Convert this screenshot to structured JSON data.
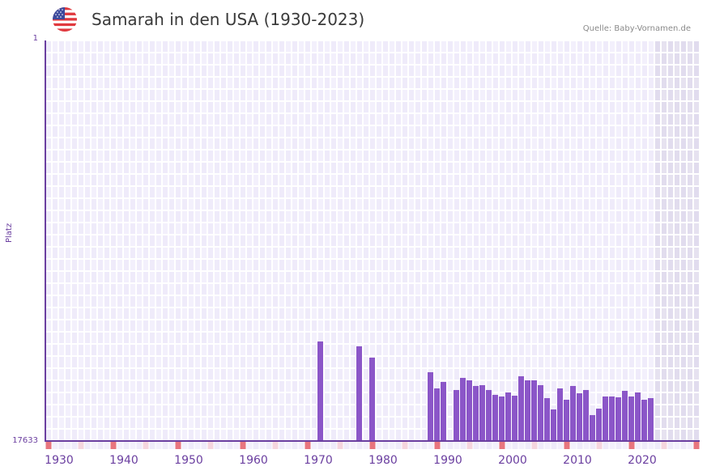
{
  "header": {
    "title": "Samarah in den USA (1930-2023)",
    "source": "Quelle: Baby-Vornamen.de",
    "flag_icon": "us-flag-icon"
  },
  "colors": {
    "bar": "#8b56c8",
    "axis": "#6b3fa0",
    "grid_bg_a": "#efebfa",
    "grid_bg_b": "#f3f0fc",
    "future_shade": "#e3dff0",
    "decade_marker": "#e8757e",
    "half_decade_marker": "#f5d5de"
  },
  "chart_data": {
    "type": "bar",
    "title": "Samarah in den USA (1930-2023)",
    "xlabel": "",
    "ylabel": "Platz",
    "y_inverted": true,
    "ylim": [
      1,
      17633
    ],
    "y_ticks": [
      "1",
      "17633"
    ],
    "x_ticks": [
      "1930",
      "1940",
      "1950",
      "1960",
      "1970",
      "1980",
      "1990",
      "2000",
      "2010",
      "2020"
    ],
    "x_range": [
      1928,
      2028
    ],
    "grid": true,
    "legend": null,
    "x": [
      1970,
      1976,
      1978,
      1987,
      1988,
      1989,
      1991,
      1992,
      1993,
      1994,
      1995,
      1996,
      1997,
      1998,
      1999,
      2000,
      2001,
      2002,
      2003,
      2004,
      2005,
      2006,
      2007,
      2008,
      2009,
      2010,
      2011,
      2012,
      2013,
      2014,
      2015,
      2016,
      2017,
      2018,
      2019,
      2020,
      2021
    ],
    "values": [
      13251,
      13464,
      13963,
      14604,
      15317,
      15032,
      15388,
      14854,
      14961,
      15210,
      15174,
      15388,
      15602,
      15673,
      15495,
      15638,
      14782,
      14961,
      14961,
      15174,
      15745,
      16243,
      15317,
      15816,
      15210,
      15531,
      15388,
      16492,
      16207,
      15673,
      15673,
      15709,
      15424,
      15673,
      15495,
      15816,
      15745
    ],
    "shaded_future_from": 2022
  }
}
